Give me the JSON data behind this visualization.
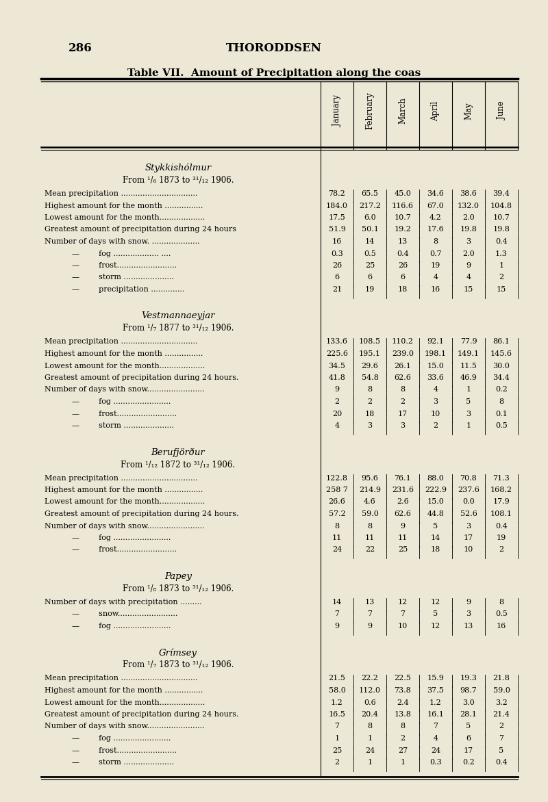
{
  "page_number": "286",
  "page_header": "THORODDSEN",
  "table_title": "Table VII.  Amount of Precipitation along the coas",
  "bg_color": "#ede8d5",
  "col_headers": [
    "January",
    "February",
    "March",
    "April",
    "May",
    "June"
  ],
  "sections": [
    {
      "title": "Stykkishólmur",
      "subtitle": "From ¹/₆ 1873 to ³¹/₁₂ 1906.",
      "rows": [
        {
          "label": "Mean precipitation ................................",
          "values": [
            "78.2",
            "65.5",
            "45.0",
            "34.6",
            "38.6",
            "39.4"
          ],
          "indent": false
        },
        {
          "label": "Highest amount for the month ................",
          "values": [
            "184.0",
            "217.2",
            "116.6",
            "67.0",
            "132.0",
            "104.8"
          ],
          "indent": false
        },
        {
          "label": "Lowest amount for the month...................",
          "values": [
            "17.5",
            "6.0",
            "10.7",
            "4.2",
            "2.0",
            "10.7"
          ],
          "indent": false
        },
        {
          "label": "Greatest amount of precipitation during 24 hours",
          "values": [
            "51.9",
            "50.1",
            "19.2",
            "17.6",
            "19.8",
            "19.8"
          ],
          "indent": false
        },
        {
          "label": "Number of days with snow. ....................",
          "values": [
            "16",
            "14",
            "13",
            "8",
            "3",
            "0.4"
          ],
          "indent": false
        },
        {
          "label": "—        fog ................... ....",
          "values": [
            "0.3",
            "0.5",
            "0.4",
            "0.7",
            "2.0",
            "1.3"
          ],
          "indent": true
        },
        {
          "label": "—        frost.........................",
          "values": [
            "26",
            "25",
            "26",
            "19",
            "9",
            "1"
          ],
          "indent": true
        },
        {
          "label": "—        storm .....................",
          "values": [
            "6",
            "6",
            "6",
            "4",
            "4",
            "2"
          ],
          "indent": true
        },
        {
          "label": "—        precipitation ..............",
          "values": [
            "21",
            "19",
            "18",
            "16",
            "15",
            "15"
          ],
          "indent": true
        }
      ]
    },
    {
      "title": "Vestmannaeyjar",
      "subtitle": "From ¹/₇ 1877 to ³¹/₁₂ 1906.",
      "rows": [
        {
          "label": "Mean precipitation ................................",
          "values": [
            "133.6",
            "108.5",
            "110.2",
            "92.1",
            "77.9",
            "86.1"
          ],
          "indent": false
        },
        {
          "label": "Highest amount for the month ................",
          "values": [
            "225.6",
            "195.1",
            "239.0",
            "198.1",
            "149.1",
            "145.6"
          ],
          "indent": false
        },
        {
          "label": "Lowest amount for the month...................",
          "values": [
            "34.5",
            "29.6",
            "26.1",
            "15.0",
            "11.5",
            "30.0"
          ],
          "indent": false
        },
        {
          "label": "Greatest amount of precipitation during 24 hours.",
          "values": [
            "41.8",
            "54.8",
            "62.6",
            "33.6",
            "46.9",
            "34.4"
          ],
          "indent": false
        },
        {
          "label": "Number of days with snow........................",
          "values": [
            "9",
            "8",
            "8",
            "4",
            "1",
            "0.2"
          ],
          "indent": false
        },
        {
          "label": "—        fog ........................",
          "values": [
            "2",
            "2",
            "2",
            "3",
            "5",
            "8"
          ],
          "indent": true
        },
        {
          "label": "—        frost.........................",
          "values": [
            "20",
            "18",
            "17",
            "10",
            "3",
            "0.1"
          ],
          "indent": true
        },
        {
          "label": "—        storm .....................",
          "values": [
            "4",
            "3",
            "3",
            "2",
            "1",
            "0.5"
          ],
          "indent": true
        }
      ]
    },
    {
      "title": "Berufjörður",
      "subtitle": "From ¹/₁₂ 1872 to ³¹/₁₂ 1906.",
      "rows": [
        {
          "label": "Mean precipitation ................................",
          "values": [
            "122.8",
            "95.6",
            "76.1",
            "88.0",
            "70.8",
            "71.3"
          ],
          "indent": false
        },
        {
          "label": "Highest amount for the month ................",
          "values": [
            "258 7",
            "214.9",
            "231.6",
            "222.9",
            "237.6",
            "168.2"
          ],
          "indent": false
        },
        {
          "label": "Lowest amount for the month...................",
          "values": [
            "26.6",
            "4.6",
            "2.6",
            "15.0",
            "0.0",
            "17.9"
          ],
          "indent": false
        },
        {
          "label": "Greatest amount of precipitation during 24 hours.",
          "values": [
            "57.2",
            "59.0",
            "62.6",
            "44.8",
            "52.6",
            "108.1"
          ],
          "indent": false
        },
        {
          "label": "Number of days with snow........................",
          "values": [
            "8",
            "8",
            "9",
            "5",
            "3",
            "0.4"
          ],
          "indent": false
        },
        {
          "label": "—        fog ........................",
          "values": [
            "11",
            "11",
            "11",
            "14",
            "17",
            "19"
          ],
          "indent": true
        },
        {
          "label": "—        frost.........................",
          "values": [
            "24",
            "22",
            "25",
            "18",
            "10",
            "2"
          ],
          "indent": true
        }
      ]
    },
    {
      "title": "Papey",
      "subtitle": "From ¹/₈ 1873 to ³¹/₁₂ 1906.",
      "rows": [
        {
          "label": "Number of days with precipitation .........",
          "values": [
            "14",
            "13",
            "12",
            "12",
            "9",
            "8"
          ],
          "indent": false
        },
        {
          "label": "—        snow.........................",
          "values": [
            "7",
            "7",
            "7",
            "5",
            "3",
            "0.5"
          ],
          "indent": true
        },
        {
          "label": "—        fog ........................",
          "values": [
            "9",
            "9",
            "10",
            "12",
            "13",
            "16"
          ],
          "indent": true
        }
      ]
    },
    {
      "title": "Grímsey",
      "subtitle": "From ¹/₇ 1873 to ³¹/₁₂ 1906.",
      "rows": [
        {
          "label": "Mean precipitation ................................",
          "values": [
            "21.5",
            "22.2",
            "22.5",
            "15.9",
            "19.3",
            "21.8"
          ],
          "indent": false
        },
        {
          "label": "Highest amount for the month ................",
          "values": [
            "58.0",
            "112.0",
            "73.8",
            "37.5",
            "98.7",
            "59.0"
          ],
          "indent": false
        },
        {
          "label": "Lowest amount for the month...................",
          "values": [
            "1.2",
            "0.6",
            "2.4",
            "1.2",
            "3.0",
            "3.2"
          ],
          "indent": false
        },
        {
          "label": "Greatest amount of precipitation during 24 hours.",
          "values": [
            "16.5",
            "20.4",
            "13.8",
            "16.1",
            "28.1",
            "21.4"
          ],
          "indent": false
        },
        {
          "label": "Number of days with snow........................",
          "values": [
            "7",
            "8",
            "8",
            "7",
            "5",
            "2"
          ],
          "indent": false
        },
        {
          "label": "—        fog ........................",
          "values": [
            "1",
            "1",
            "2",
            "4",
            "6",
            "7"
          ],
          "indent": true
        },
        {
          "label": "—        frost.........................",
          "values": [
            "25",
            "24",
            "27",
            "24",
            "17",
            "5"
          ],
          "indent": true
        },
        {
          "label": "—        storm .....................",
          "values": [
            "2",
            "1",
            "1",
            "0.3",
            "0.2",
            "0.4"
          ],
          "indent": true
        }
      ]
    }
  ]
}
